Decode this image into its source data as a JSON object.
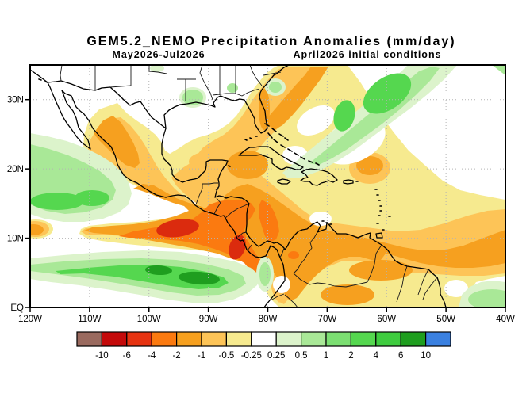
{
  "title": "GEM5.2_NEMO Precipitation Anomalies (mm/day)",
  "subtitle_left": "May2026-Jul2026",
  "subtitle_right": "April2026 initial conditions",
  "axes": {
    "lat_ticks": [
      {
        "label": "EQ",
        "lat": 0
      },
      {
        "label": "10N",
        "lat": 10
      },
      {
        "label": "20N",
        "lat": 20
      },
      {
        "label": "30N",
        "lat": 30
      }
    ],
    "lon_ticks": [
      {
        "label": "120W",
        "lon": 120
      },
      {
        "label": "110W",
        "lon": 110
      },
      {
        "label": "100W",
        "lon": 100
      },
      {
        "label": "90W",
        "lon": 90
      },
      {
        "label": "80W",
        "lon": 80
      },
      {
        "label": "70W",
        "lon": 70
      },
      {
        "label": "60W",
        "lon": 60
      },
      {
        "label": "50W",
        "lon": 50
      },
      {
        "label": "40W",
        "lon": 40
      }
    ]
  },
  "colorbar": {
    "labels": [
      "-10",
      "-6",
      "-4",
      "-2",
      "-1",
      "-0.5",
      "-0.25",
      "0.25",
      "0.5",
      "1",
      "2",
      "4",
      "6",
      "10"
    ],
    "colors": [
      "#9A6A5F",
      "#C40A0A",
      "#E63311",
      "#FB7A10",
      "#F6A01F",
      "#FDC457",
      "#F6EA8F",
      "#FFFFFF",
      "#DCF3CB",
      "#A9E897",
      "#7CDF72",
      "#55D74F",
      "#3FCC3F",
      "#1F9E1F",
      "#3A80E0"
    ],
    "units": "mm/day"
  },
  "chart_data": {
    "type": "heatmap",
    "subtype": "filled-contour anomaly map",
    "title": "GEM5.2_NEMO Precipitation Anomalies (mm/day)",
    "forecast_period": "May2026-Jul2026",
    "initial_conditions": "April2026",
    "units": "mm/day",
    "lon_range_deg_west": [
      120,
      40
    ],
    "lat_range_deg_north": [
      0,
      35
    ],
    "grid": "dotted, every 10 degrees",
    "legend_position": "bottom horizontal colorbar",
    "contour_levels": [
      -10,
      -6,
      -4,
      -2,
      -1,
      -0.5,
      -0.25,
      0.25,
      0.5,
      1,
      2,
      4,
      6,
      10
    ],
    "palette": [
      "#9A6A5F",
      "#C40A0A",
      "#E63311",
      "#FB7A10",
      "#F6A01F",
      "#FDC457",
      "#F6EA8F",
      "#FFFFFF",
      "#DCF3CB",
      "#A9E897",
      "#7CDF72",
      "#55D74F",
      "#3FCC3F",
      "#1F9E1F",
      "#3A80E0"
    ],
    "features": [
      {
        "region": "Eastern Pacific ITCZ band (~3-7N, 120W-80W)",
        "anomaly_mm_day": "+1 to +6 (wet), dark-green cores near 96W and 89W"
      },
      {
        "region": "Pacific off Baja California / west of Mexico (8-22N, 120W-105W)",
        "anomaly_mm_day": "+0.5 to +4 (wet)"
      },
      {
        "region": "Pacific south of Mexico-Guatemala (9-13N, 105W-85W)",
        "anomaly_mm_day": "-2 to -6 (dry), red core near 90W 11N"
      },
      {
        "region": "Costa Rica / Panama / NW Colombia",
        "anomaly_mm_day": "-4 to -6 (dry)"
      },
      {
        "region": "Mexican interior and southern Gulf of Mexico",
        "anomaly_mm_day": "-0.5 to -2 (dry)"
      },
      {
        "region": "Western Caribbean, Cuba, Yucatan",
        "anomaly_mm_day": "-1 to -2 (dry)"
      },
      {
        "region": "Venezuela, Colombia, Guianas, tropical Atlantic 0-10N to 40W",
        "anomaly_mm_day": "-1 to -2 (dry)"
      },
      {
        "region": "Florida and Bahamas with band extending northeast off SE US",
        "anomaly_mm_day": "-1 to -2 (dry)"
      },
      {
        "region": "Subtropical NW Atlantic diagonal band (25-35N)",
        "anomaly_mm_day": "+0.5 to +2 (wet)"
      },
      {
        "region": "Small patches over Alabama/Georgia",
        "anomaly_mm_day": "+0.5 to +1 (wet)"
      },
      {
        "region": "Atlantic near 42-45W south of 3N",
        "anomaly_mm_day": "+0.5 to +1 (wet)"
      },
      {
        "region": "Small dry spot at 120W 11N map edge",
        "anomaly_mm_day": "-1 to -2 (dry)"
      }
    ]
  }
}
